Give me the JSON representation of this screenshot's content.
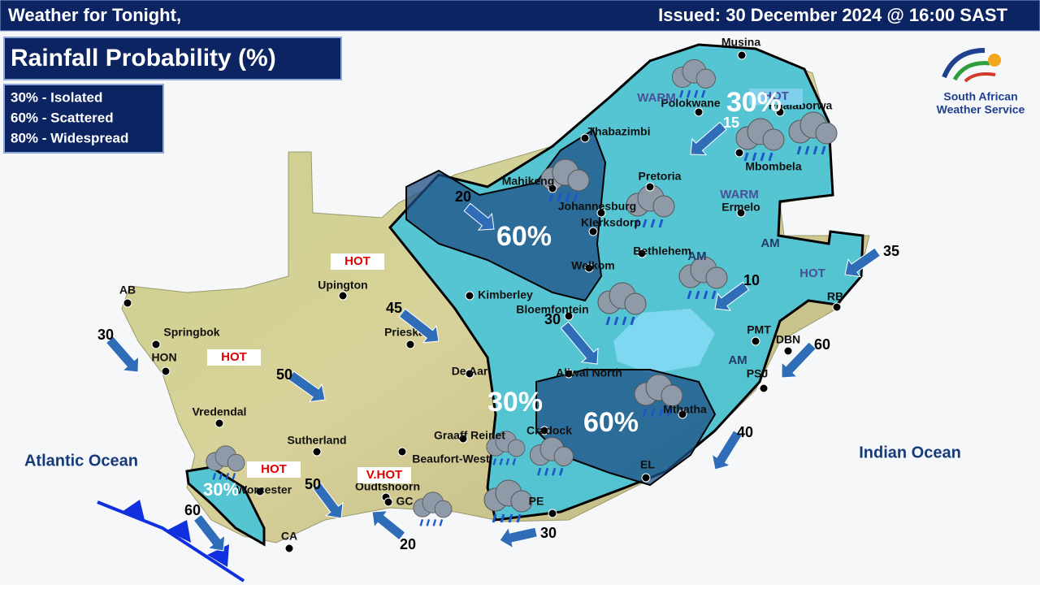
{
  "header": {
    "left": "Weather for Tonight,",
    "right": "Issued: 30 December 2024  @ 16:00 SAST"
  },
  "title": "Rainfall Probability (%)",
  "legend": [
    "30% - Isolated",
    "60% - Scattered",
    "80% - Widespread"
  ],
  "oceans": [
    "Atlantic Ocean",
    "Indian Ocean"
  ],
  "logo": [
    "South African",
    "Weather Service"
  ],
  "towns": [
    "Musina",
    "Polokwane",
    "Phalaborwa",
    "Thabazimbi",
    "Mahikeng",
    "Pretoria",
    "Johannesburg",
    "Klerksdorp",
    "Mbombela",
    "Ermelo",
    "Welkom",
    "Bethlehem",
    "Kimberley",
    "Bloemfontein",
    "Upington",
    "Springbok",
    "Vredendal",
    "Sutherland",
    "Beaufort-West",
    "Graaff Reinet",
    "De Aar",
    "Prieska",
    "Aliwal North",
    "Cradock",
    "Mthatha",
    "Oudtshoorn",
    "Worcester",
    "AB",
    "HON",
    "CA",
    "GC",
    "RB",
    "DBN",
    "PMT",
    "PSJ",
    "EL",
    "PE"
  ],
  "probability_labels": [
    "30%",
    "60%",
    "30%",
    "60%",
    "30%"
  ],
  "temperature_tags": [
    "HOT",
    "HOT",
    "HOT",
    "V.HOT",
    "WARM",
    "HOT",
    "WARM",
    "HOT"
  ],
  "am_labels": [
    "AM",
    "AM",
    "AM"
  ],
  "winds": [
    15,
    20,
    45,
    30,
    50,
    35,
    10,
    30,
    60,
    40,
    50,
    20,
    30,
    60
  ]
}
